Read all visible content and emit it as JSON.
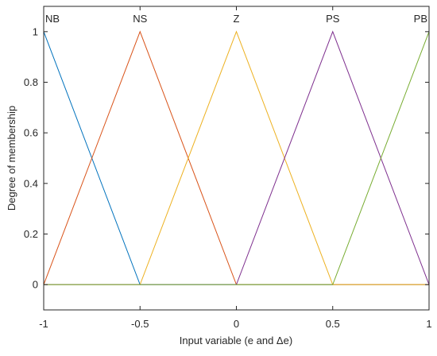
{
  "chart_data": {
    "type": "line",
    "title": "",
    "xlabel": "Input variable (e and Δe)",
    "ylabel": "Degree of membership",
    "xlim": [
      -1,
      1
    ],
    "ylim": [
      -0.1,
      1.1
    ],
    "grid": false,
    "x_ticks": [
      -1,
      -0.5,
      0,
      0.5,
      1
    ],
    "x_tick_labels": [
      "-1",
      "-0.5",
      "0",
      "0.5",
      "1"
    ],
    "y_ticks": [
      0,
      0.2,
      0.4,
      0.6,
      0.8,
      1
    ],
    "y_tick_labels": [
      "0",
      "0.2",
      "0.4",
      "0.6",
      "0.8",
      "1"
    ],
    "series": [
      {
        "name": "NB",
        "color": "#0072BD",
        "x": [
          -1,
          -0.5,
          1
        ],
        "y": [
          1,
          0,
          0
        ]
      },
      {
        "name": "NS",
        "color": "#D95319",
        "x": [
          -1,
          -0.5,
          0,
          1
        ],
        "y": [
          0,
          1,
          0,
          0
        ]
      },
      {
        "name": "Z",
        "color": "#EDB120",
        "x": [
          -1,
          -0.5,
          0,
          0.5,
          1
        ],
        "y": [
          0,
          0,
          1,
          0,
          0
        ]
      },
      {
        "name": "PS",
        "color": "#7E2F8E",
        "x": [
          -1,
          0,
          0.5,
          1
        ],
        "y": [
          0,
          0,
          1,
          0
        ]
      },
      {
        "name": "PB",
        "color": "#77AC30",
        "x": [
          -1,
          0.5,
          1
        ],
        "y": [
          0,
          0,
          1
        ]
      }
    ],
    "annotations": [
      {
        "text": "NB",
        "x": -1
      },
      {
        "text": "NS",
        "x": -0.5
      },
      {
        "text": "Z",
        "x": 0
      },
      {
        "text": "PS",
        "x": 0.5
      },
      {
        "text": "PB",
        "x": 1
      }
    ]
  }
}
